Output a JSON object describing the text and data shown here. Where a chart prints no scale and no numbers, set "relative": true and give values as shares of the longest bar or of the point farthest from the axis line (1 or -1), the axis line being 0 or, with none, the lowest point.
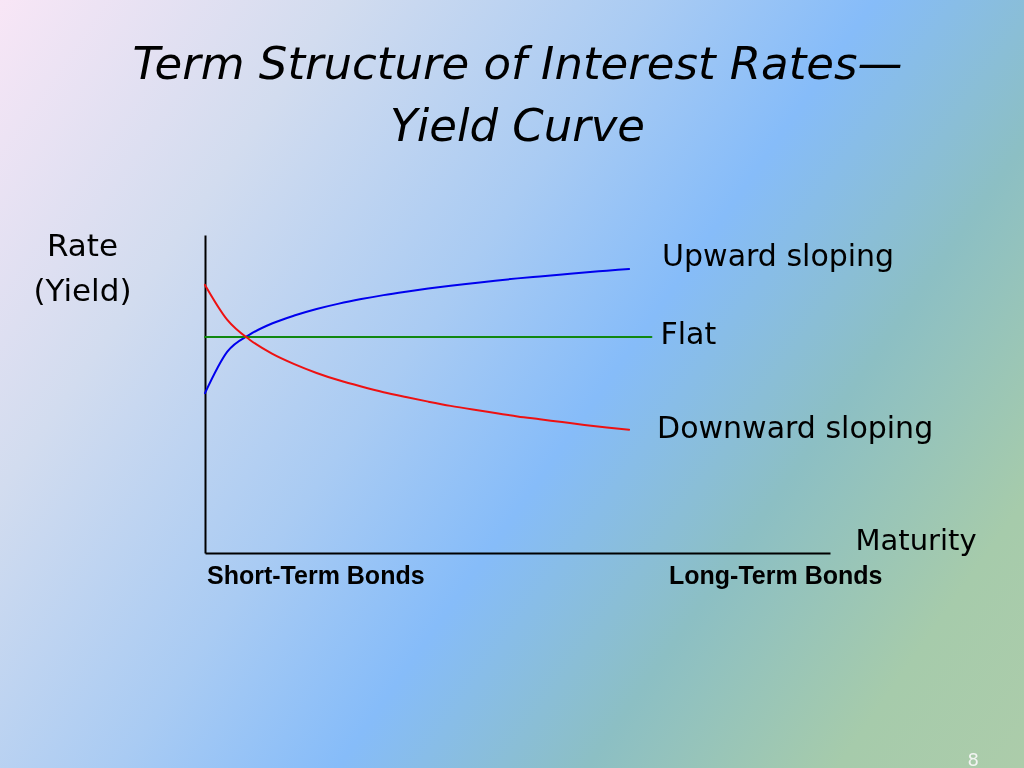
{
  "chart_data": {
    "type": "line",
    "title": "Term Structure of Interest Rates—\nYield Curve",
    "xlabel": "Maturity",
    "ylabel": "Rate\n(Yield)",
    "categories": [
      null,
      null,
      null,
      null,
      null,
      null,
      null,
      null,
      null,
      null,
      null,
      null,
      null,
      null,
      null,
      null,
      null,
      null,
      null,
      null,
      null,
      null,
      null,
      null,
      null,
      null,
      null,
      null,
      null
    ],
    "relative": true,
    "series": [
      {
        "name": "Upward sloping",
        "color": "#0000ee",
        "values": [
          0.563,
          0.709,
          0.769,
          0.808,
          0.836,
          0.859,
          0.878,
          0.894,
          0.908,
          0.92,
          0.931,
          0.941,
          0.95,
          0.959,
          0.967,
          0.974,
          0.981,
          0.988,
          0.994,
          1.0,
          null,
          null,
          null,
          null,
          null,
          null,
          null,
          null,
          null
        ]
      },
      {
        "name": "Flat",
        "color": "#118811",
        "values": [
          0.761,
          0.761,
          0.761,
          0.761,
          0.761,
          0.761,
          0.761,
          0.761,
          0.761,
          0.761,
          0.761,
          0.761,
          0.761,
          0.761,
          0.761,
          0.761,
          0.761,
          0.761,
          0.761,
          0.761,
          0.761,
          null,
          null,
          null,
          null,
          null,
          null,
          null,
          null
        ]
      },
      {
        "name": "Downward sloping",
        "color": "#ee1111",
        "values": [
          0.944,
          0.821,
          0.751,
          0.702,
          0.665,
          0.634,
          0.608,
          0.586,
          0.566,
          0.549,
          0.533,
          0.518,
          0.505,
          0.493,
          0.481,
          0.471,
          0.461,
          0.451,
          0.442,
          0.434,
          null,
          null,
          null,
          null,
          null,
          null,
          null,
          null,
          null
        ]
      }
    ],
    "annotations": [
      "Short-Term Bonds",
      "Long-Term Bonds",
      "8"
    ],
    "legend": false,
    "tick_labels": false,
    "marker": "none",
    "line_style": "solid"
  }
}
